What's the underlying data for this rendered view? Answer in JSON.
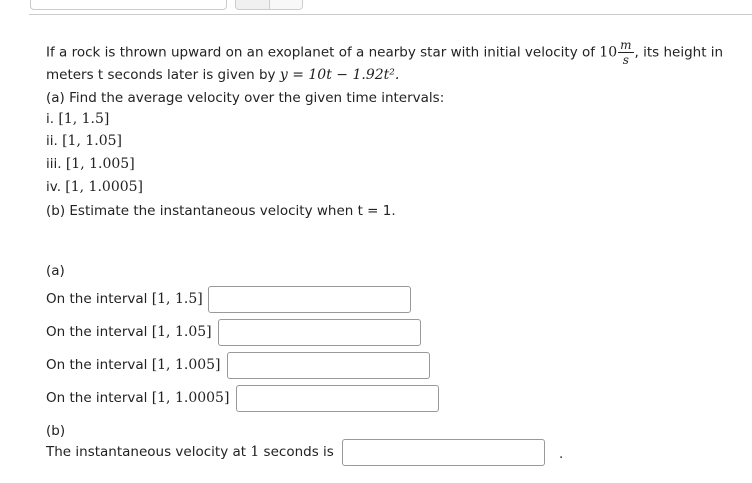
{
  "problem": {
    "line1_pre": "If a rock is thrown upward on an exoplanet of a nearby star with initial velocity of ",
    "velocity_value": "10",
    "unit_num": "m",
    "unit_den": "s",
    "line1_post": ", its height in",
    "line2_pre": "meters t seconds later is given by ",
    "equation": "y = 10t − 1.92t².",
    "part_a": "(a) Find the average velocity over the given time intervals:",
    "intervals": [
      {
        "label": "i. ",
        "interval": "[1, 1.5]"
      },
      {
        "label": "ii. ",
        "interval": "[1, 1.05]"
      },
      {
        "label": "iii. ",
        "interval": "[1, 1.005]"
      },
      {
        "label": "iv. ",
        "interval": "[1, 1.0005]"
      }
    ],
    "part_b": "(b) Estimate the instantaneous velocity when t = 1."
  },
  "answers": {
    "a_label": "(a)",
    "rows": [
      {
        "prefix": "On the interval ",
        "interval": "[1, 1.5]",
        "value": ""
      },
      {
        "prefix": "On the interval ",
        "interval": "[1, 1.05]",
        "value": ""
      },
      {
        "prefix": "On the interval ",
        "interval": "[1, 1.005]",
        "value": ""
      },
      {
        "prefix": "On the interval ",
        "interval": "[1, 1.0005]",
        "value": ""
      }
    ],
    "b_label": "(b)",
    "b_prefix": "The instantaneous velocity at ",
    "b_t": "1",
    "b_suffix": " seconds is",
    "b_value": "",
    "period": "."
  }
}
